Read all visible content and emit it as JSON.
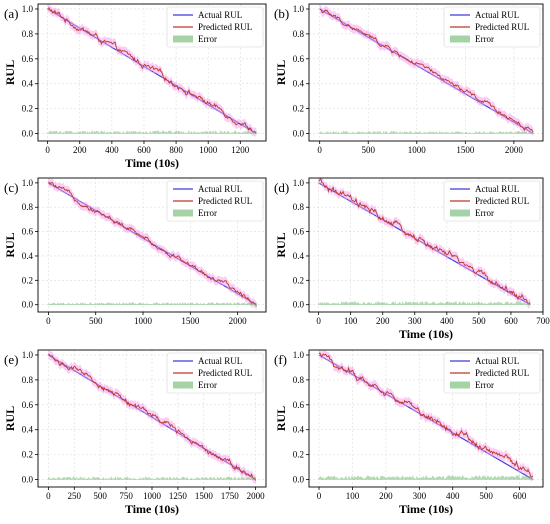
{
  "figure": {
    "colors": {
      "actual": "#3b3bdc",
      "predicted": "#c0342a",
      "error": "#7fc07f",
      "band": "#f2a6ee",
      "grid": "#dcdcdc"
    }
  },
  "chart_data": [
    {
      "panel_label": "(a)",
      "type": "line",
      "xlabel": "Time (10s)",
      "ylabel": "RUL",
      "xlim": [
        -60,
        1360
      ],
      "ylim": [
        -0.06,
        1.04
      ],
      "xticks": [
        0,
        200,
        400,
        600,
        800,
        1000,
        1200
      ],
      "yticks": [
        0.0,
        0.2,
        0.4,
        0.6,
        0.8,
        1.0
      ],
      "x_end": 1300,
      "grid": true,
      "legend_position": "top-right",
      "series": [
        {
          "name": "Actual RUL",
          "kind": "line",
          "x": [
            0,
            1300
          ],
          "y": [
            1.0,
            0.0
          ]
        },
        {
          "name": "Predicted RUL",
          "kind": "noisy-line",
          "x": [
            0,
            1300
          ],
          "y": [
            1.0,
            0.02
          ],
          "noise": 0.012
        },
        {
          "name": "Error",
          "kind": "area",
          "x": [
            0,
            1300
          ],
          "y": [
            0.01,
            0.01
          ],
          "noise": 0.012
        }
      ]
    },
    {
      "panel_label": "(b)",
      "type": "line",
      "xlabel": "",
      "ylabel": "RUL",
      "xlim": [
        -110,
        2300
      ],
      "ylim": [
        -0.06,
        1.04
      ],
      "xticks": [
        0,
        500,
        1000,
        1500,
        2000
      ],
      "yticks": [
        0.0,
        0.2,
        0.4,
        0.6,
        0.8,
        1.0
      ],
      "x_end": 2200,
      "grid": true,
      "legend_position": "top-right",
      "series": [
        {
          "name": "Actual RUL",
          "kind": "line",
          "x": [
            0,
            2200
          ],
          "y": [
            1.0,
            0.0
          ]
        },
        {
          "name": "Predicted RUL",
          "kind": "noisy-line",
          "x": [
            0,
            2200
          ],
          "y": [
            1.0,
            0.02
          ],
          "noise": 0.01
        },
        {
          "name": "Error",
          "kind": "area",
          "x": [
            0,
            2200
          ],
          "y": [
            0.008,
            0.008
          ],
          "noise": 0.01
        }
      ]
    },
    {
      "panel_label": "(c)",
      "type": "line",
      "xlabel": "",
      "ylabel": "RUL",
      "xlim": [
        -110,
        2300
      ],
      "ylim": [
        -0.06,
        1.04
      ],
      "xticks": [
        0,
        500,
        1000,
        1500,
        2000
      ],
      "yticks": [
        0.0,
        0.2,
        0.4,
        0.6,
        0.8,
        1.0
      ],
      "x_end": 2200,
      "grid": true,
      "legend_position": "top-right",
      "series": [
        {
          "name": "Actual RUL",
          "kind": "line",
          "x": [
            0,
            2200
          ],
          "y": [
            1.0,
            0.0
          ]
        },
        {
          "name": "Predicted RUL",
          "kind": "noisy-line",
          "x": [
            0,
            2200
          ],
          "y": [
            1.0,
            0.01
          ],
          "noise": 0.01
        },
        {
          "name": "Error",
          "kind": "area",
          "x": [
            0,
            2200
          ],
          "y": [
            0.008,
            0.008
          ],
          "noise": 0.01
        }
      ]
    },
    {
      "panel_label": "(d)",
      "type": "line",
      "xlabel": "Time (10s)",
      "ylabel": "RUL",
      "xlim": [
        -30,
        700
      ],
      "ylim": [
        -0.06,
        1.04
      ],
      "xticks": [
        0,
        100,
        200,
        300,
        400,
        500,
        600,
        700
      ],
      "yticks": [
        0.0,
        0.2,
        0.4,
        0.6,
        0.8,
        1.0
      ],
      "x_end": 660,
      "grid": true,
      "legend_position": "top-right",
      "series": [
        {
          "name": "Actual RUL",
          "kind": "line",
          "x": [
            0,
            660
          ],
          "y": [
            1.0,
            0.0
          ]
        },
        {
          "name": "Predicted RUL",
          "kind": "noisy-line",
          "x": [
            0,
            660
          ],
          "y": [
            1.0,
            0.02
          ],
          "noise": 0.015
        },
        {
          "name": "Error",
          "kind": "area",
          "x": [
            0,
            660
          ],
          "y": [
            0.012,
            0.012
          ],
          "noise": 0.014
        }
      ]
    },
    {
      "panel_label": "(e)",
      "type": "line",
      "xlabel": "Time (10s)",
      "ylabel": "RUL",
      "xlim": [
        -100,
        2100
      ],
      "ylim": [
        -0.06,
        1.04
      ],
      "xticks": [
        0,
        250,
        500,
        750,
        1000,
        1250,
        1500,
        1750,
        2000
      ],
      "yticks": [
        0.0,
        0.2,
        0.4,
        0.6,
        0.8,
        1.0
      ],
      "x_end": 2000,
      "grid": true,
      "legend_position": "top-right",
      "series": [
        {
          "name": "Actual RUL",
          "kind": "line",
          "x": [
            0,
            2000
          ],
          "y": [
            1.0,
            0.0
          ]
        },
        {
          "name": "Predicted RUL",
          "kind": "noisy-line",
          "x": [
            0,
            2000
          ],
          "y": [
            1.0,
            0.02
          ],
          "noise": 0.012
        },
        {
          "name": "Error",
          "kind": "area",
          "x": [
            0,
            2000
          ],
          "y": [
            0.01,
            0.01
          ],
          "noise": 0.012
        }
      ]
    },
    {
      "panel_label": "(f)",
      "type": "line",
      "xlabel": "Time (10s)",
      "ylabel": "RUL",
      "xlim": [
        -30,
        670
      ],
      "ylim": [
        -0.06,
        1.04
      ],
      "xticks": [
        0,
        100,
        200,
        300,
        400,
        500,
        600
      ],
      "yticks": [
        0.0,
        0.2,
        0.4,
        0.6,
        0.8,
        1.0
      ],
      "x_end": 640,
      "grid": true,
      "legend_position": "top-right",
      "series": [
        {
          "name": "Actual RUL",
          "kind": "line",
          "x": [
            0,
            640
          ],
          "y": [
            1.0,
            0.0
          ]
        },
        {
          "name": "Predicted RUL",
          "kind": "noisy-line",
          "x": [
            0,
            640
          ],
          "y": [
            1.0,
            0.04
          ],
          "noise": 0.014
        },
        {
          "name": "Error",
          "kind": "area",
          "x": [
            0,
            640
          ],
          "y": [
            0.015,
            0.02
          ],
          "noise": 0.013
        }
      ]
    }
  ]
}
